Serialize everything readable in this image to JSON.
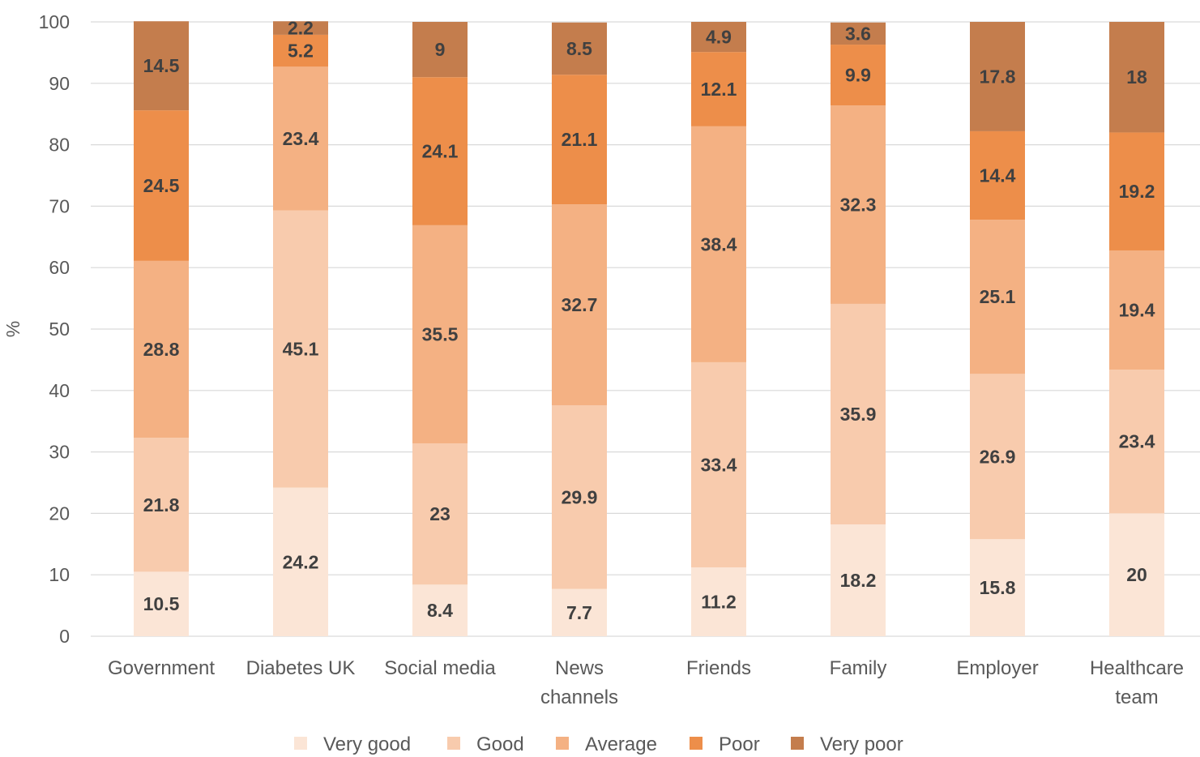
{
  "chart_data": {
    "type": "bar",
    "stacked": true,
    "title": "",
    "xlabel": "",
    "ylabel": "%",
    "ylim": [
      0,
      100
    ],
    "yticks": [
      0,
      10,
      20,
      30,
      40,
      50,
      60,
      70,
      80,
      90,
      100
    ],
    "grid": true,
    "legend_position": "bottom",
    "categories": [
      [
        "Government"
      ],
      [
        "Diabetes UK"
      ],
      [
        "Social media"
      ],
      [
        "News",
        "channels"
      ],
      [
        "Friends"
      ],
      [
        "Family"
      ],
      [
        "Employer"
      ],
      [
        "Healthcare",
        "team"
      ]
    ],
    "series": [
      {
        "name": "Very good",
        "color": "#FBE5D6",
        "values": [
          10.5,
          24.2,
          8.4,
          7.7,
          11.2,
          18.2,
          15.8,
          20
        ]
      },
      {
        "name": "Good",
        "color": "#F8CBAD",
        "values": [
          21.8,
          45.1,
          23,
          29.9,
          33.4,
          35.9,
          26.9,
          23.4
        ]
      },
      {
        "name": "Average",
        "color": "#F4B183",
        "values": [
          28.8,
          23.4,
          35.5,
          32.7,
          38.4,
          32.3,
          25.1,
          19.4
        ]
      },
      {
        "name": "Poor",
        "color": "#ED8E4A",
        "values": [
          24.5,
          5.2,
          24.1,
          21.1,
          12.1,
          9.9,
          14.4,
          19.2
        ]
      },
      {
        "name": "Very poor",
        "color": "#C47D4D",
        "values": [
          14.5,
          2.2,
          9,
          8.5,
          4.9,
          3.6,
          17.8,
          18
        ]
      }
    ]
  }
}
